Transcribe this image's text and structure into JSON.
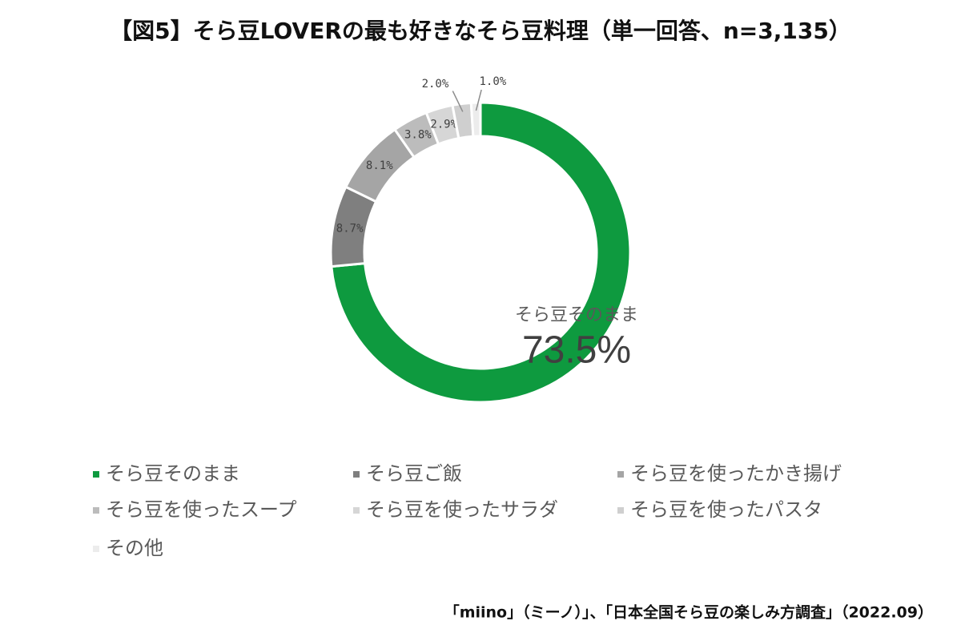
{
  "chart_data": {
    "type": "donut",
    "title": "【図5】そら豆LOVERの最も好きなそら豆料理（単一回答、n=3,135）",
    "categories": [
      "そら豆そのまま",
      "そら豆ご飯",
      "そら豆を使ったかき揚げ",
      "そら豆を使ったスープ",
      "そら豆を使ったサラダ",
      "そら豆を使ったパスタ",
      "その他"
    ],
    "values": [
      73.5,
      8.7,
      8.1,
      3.8,
      2.9,
      2.0,
      1.0
    ],
    "value_labels": [
      "73.5%",
      "8.7%",
      "8.1%",
      "3.8%",
      "2.9%",
      "2.0%",
      "1.0%"
    ],
    "colors": [
      "#0e9a3f",
      "#7f7f7f",
      "#a5a5a5",
      "#bcbcbc",
      "#d6d6d6",
      "#cfcfcf",
      "#ececec"
    ],
    "legend_position": "bottom",
    "source": "「miino」（ミーノ）」、「日本全国そら豆の楽しみ方調査」（2022.09）"
  }
}
